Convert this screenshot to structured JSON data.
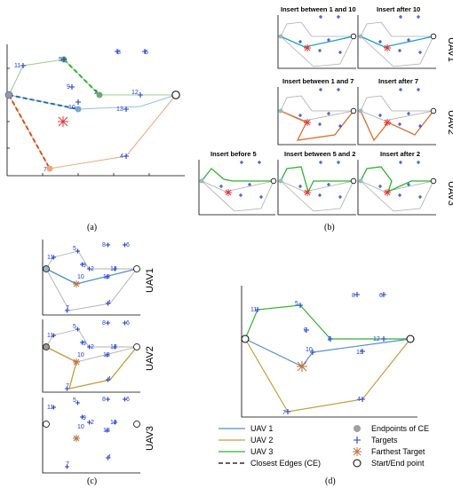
{
  "colors": {
    "uav1": "#4f8fd0",
    "uav2": "#d98a3a",
    "uav3": "#2db52d",
    "target": "#1f3ed6",
    "gray": "#a9a9a9",
    "orange": "#f07a3a",
    "red": "#e83030"
  },
  "panels": {
    "a": {
      "caption": "(a)"
    },
    "b": {
      "caption": "(b)",
      "row_labels": [
        "UAV1",
        "UAV2",
        "UAV3"
      ],
      "titles_row1": [
        "Insert between 1 and 10",
        "Insert after 10"
      ],
      "titles_row2": [
        "Insert between 1 and 7",
        "Insert after 7"
      ],
      "titles_row3": [
        "Insert before 5",
        "Insert between 5 and 2",
        "Insert after 2"
      ]
    },
    "c": {
      "caption": "(c)",
      "row_labels": [
        "UAV1",
        "UAV2",
        "UAV3"
      ]
    },
    "d": {
      "caption": "(d)"
    }
  },
  "target_labels": [
    "11",
    "5",
    "8",
    "9",
    "6",
    "2",
    "10",
    "12",
    "13",
    "7",
    "4"
  ],
  "legend": {
    "left": [
      "UAV 1",
      "UAV 2",
      "UAV 3",
      "Closest Edges (CE)"
    ],
    "right": [
      "Endpoints of CE",
      "Targets",
      "Farthest Target",
      "Start/End point"
    ]
  }
}
